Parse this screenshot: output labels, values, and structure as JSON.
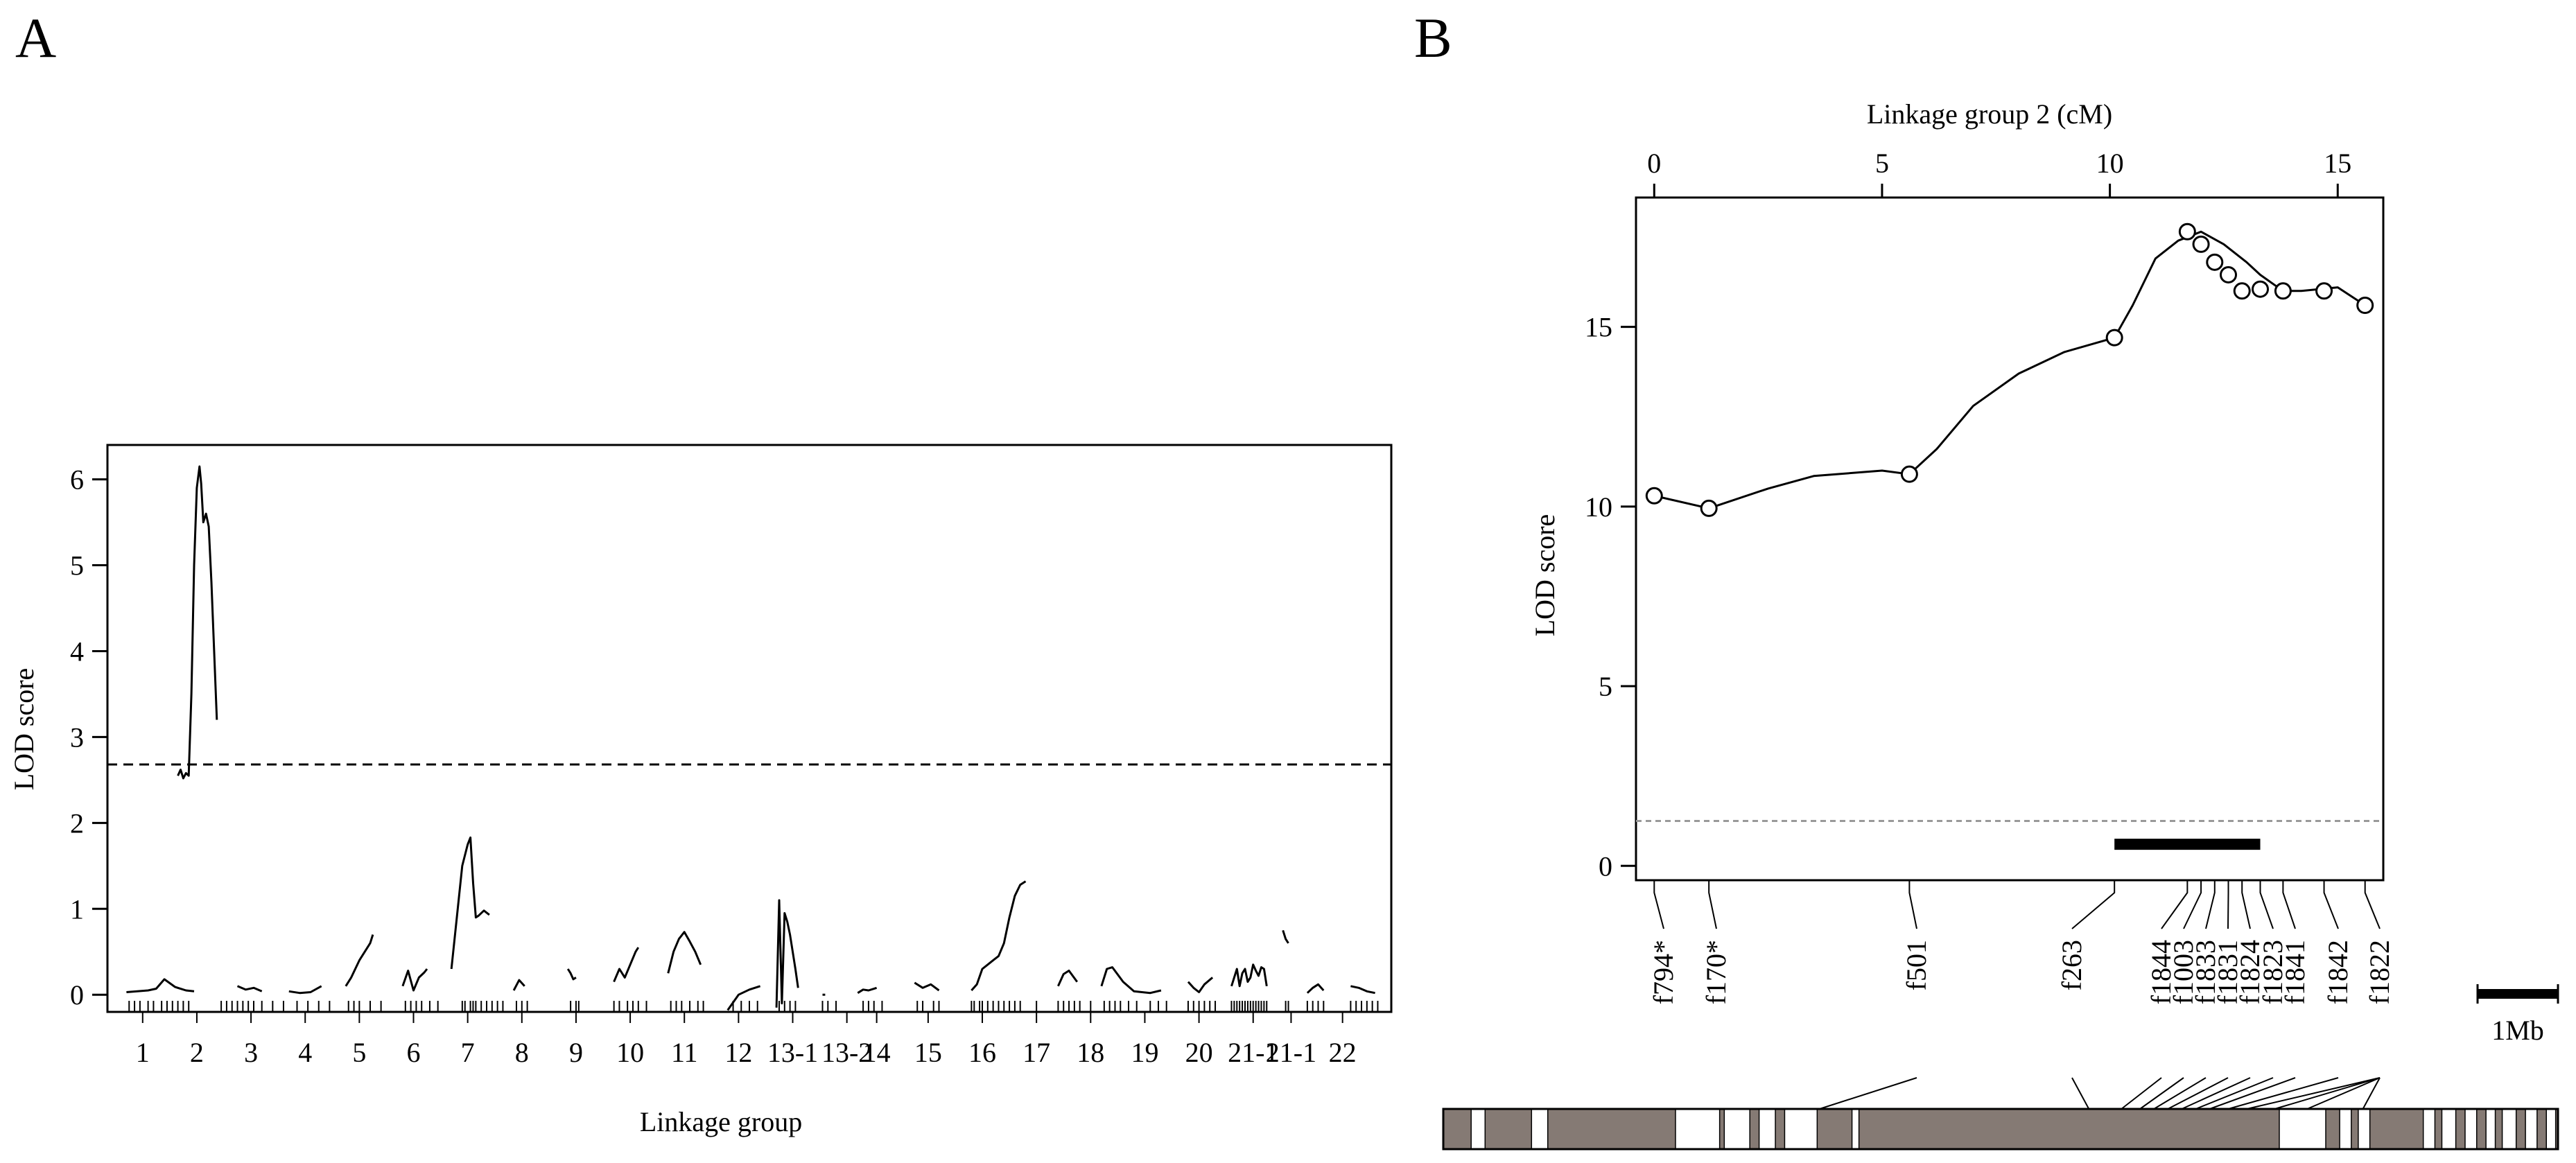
{
  "chart_data": [
    {
      "type": "line",
      "panel_label": "A",
      "xlabel": "Linkage group",
      "ylabel": "LOD score",
      "ylim": [
        -0.2,
        6.4
      ],
      "yticks": [
        0,
        1,
        2,
        3,
        4,
        5,
        6
      ],
      "threshold": 2.68,
      "groups": [
        "1",
        "2",
        "3",
        "4",
        "5",
        "6",
        "7",
        "8",
        "9",
        "10",
        "11",
        "12",
        "13-1",
        "13-2",
        "14",
        "15",
        "16",
        "17",
        "18",
        "19",
        "20",
        "21-1",
        "21-1",
        "22"
      ],
      "group_label_x": [
        1,
        2,
        3,
        4,
        5,
        6,
        7,
        8,
        9,
        10,
        11,
        12,
        13,
        14,
        14.55,
        15.5,
        16.5,
        17.5,
        18.5,
        19.5,
        20.5,
        21.5,
        22.2,
        23.15
      ],
      "xlim": [
        0.35,
        24.05
      ],
      "series": [
        {
          "x": [
            0.7,
            0.9,
            1.1,
            1.25,
            1.4,
            1.6,
            1.8,
            1.95
          ],
          "y": [
            0.03,
            0.04,
            0.05,
            0.07,
            0.18,
            0.09,
            0.05,
            0.04
          ]
        },
        {
          "x": [
            1.65,
            1.7,
            1.75,
            1.8,
            1.85,
            1.9,
            1.95,
            2.0,
            2.05,
            2.08,
            2.12,
            2.17,
            2.22,
            2.27,
            2.32,
            2.37
          ],
          "y": [
            2.55,
            2.62,
            2.52,
            2.58,
            2.55,
            3.5,
            5.0,
            5.9,
            6.15,
            5.95,
            5.5,
            5.6,
            5.45,
            4.8,
            4.0,
            3.2
          ]
        },
        {
          "x": [
            2.75,
            2.9,
            3.05,
            3.2
          ],
          "y": [
            0.1,
            0.06,
            0.08,
            0.04
          ]
        },
        {
          "x": [
            3.7,
            3.9,
            4.1,
            4.3
          ],
          "y": [
            0.04,
            0.02,
            0.03,
            0.1
          ]
        },
        {
          "x": [
            4.75,
            4.85,
            5.0,
            5.1,
            5.2,
            5.25
          ],
          "y": [
            0.1,
            0.2,
            0.4,
            0.5,
            0.6,
            0.7
          ]
        },
        {
          "x": [
            5.8,
            5.9,
            6.0,
            6.1,
            6.2,
            6.25
          ],
          "y": [
            0.1,
            0.28,
            0.05,
            0.2,
            0.26,
            0.3
          ]
        },
        {
          "x": [
            6.7,
            6.8,
            6.9,
            7.0,
            7.05,
            7.1,
            7.15,
            7.2,
            7.3,
            7.4
          ],
          "y": [
            0.3,
            0.9,
            1.5,
            1.75,
            1.83,
            1.3,
            0.9,
            0.92,
            0.98,
            0.93
          ]
        },
        {
          "x": [
            7.85,
            7.95,
            8.05
          ],
          "y": [
            0.05,
            0.17,
            0.1
          ]
        },
        {
          "x": [
            8.85,
            8.9,
            8.95,
            9.0
          ],
          "y": [
            0.3,
            0.25,
            0.18,
            0.2
          ]
        },
        {
          "x": [
            9.7,
            9.8,
            9.9,
            10.0,
            10.1,
            10.15
          ],
          "y": [
            0.15,
            0.3,
            0.2,
            0.35,
            0.5,
            0.55
          ]
        },
        {
          "x": [
            10.7,
            10.8,
            10.9,
            11.0,
            11.1,
            11.2,
            11.3
          ],
          "y": [
            0.25,
            0.5,
            0.65,
            0.73,
            0.62,
            0.5,
            0.35
          ]
        },
        {
          "x": [
            11.8,
            12.0,
            12.2,
            12.4
          ],
          "y": [
            -0.18,
            0.0,
            0.06,
            0.1
          ]
        },
        {
          "x": [
            12.7,
            12.75,
            12.8,
            12.85,
            12.9,
            12.95,
            13.0,
            13.05,
            13.1
          ],
          "y": [
            -0.15,
            1.1,
            -0.1,
            0.95,
            0.85,
            0.7,
            0.5,
            0.3,
            0.08
          ]
        },
        {
          "x": [
            13.55,
            13.6
          ],
          "y": [
            0.0,
            0.0
          ]
        },
        {
          "x": [
            14.2,
            14.3,
            14.4,
            14.55
          ],
          "y": [
            0.02,
            0.06,
            0.05,
            0.08
          ]
        },
        {
          "x": [
            15.25,
            15.4,
            15.55,
            15.7
          ],
          "y": [
            0.14,
            0.08,
            0.12,
            0.05
          ]
        },
        {
          "x": [
            16.3,
            16.4,
            16.5,
            16.6,
            16.7,
            16.8,
            16.9,
            17.0,
            17.1,
            17.2,
            17.3
          ],
          "y": [
            0.05,
            0.12,
            0.3,
            0.35,
            0.4,
            0.45,
            0.6,
            0.9,
            1.15,
            1.28,
            1.32
          ]
        },
        {
          "x": [
            17.9,
            18.0,
            18.1,
            18.25
          ],
          "y": [
            0.1,
            0.24,
            0.28,
            0.15
          ]
        },
        {
          "x": [
            18.7,
            18.8,
            18.9,
            19.1,
            19.3,
            19.6,
            19.8
          ],
          "y": [
            0.1,
            0.3,
            0.32,
            0.15,
            0.04,
            0.02,
            0.05
          ]
        },
        {
          "x": [
            20.3,
            20.4,
            20.5,
            20.6,
            20.75
          ],
          "y": [
            0.15,
            0.08,
            0.03,
            0.12,
            0.2
          ]
        },
        {
          "x": [
            21.1,
            21.2,
            21.25,
            21.3,
            21.35,
            21.4,
            21.45,
            21.5,
            21.55,
            21.6,
            21.65,
            21.7,
            21.75
          ],
          "y": [
            0.1,
            0.3,
            0.1,
            0.25,
            0.3,
            0.15,
            0.2,
            0.35,
            0.28,
            0.22,
            0.32,
            0.3,
            0.1
          ]
        },
        {
          "x": [
            22.05,
            22.1,
            22.15
          ],
          "y": [
            0.75,
            0.65,
            0.6
          ]
        },
        {
          "x": [
            22.5,
            22.6,
            22.7,
            22.8
          ],
          "y": [
            0.02,
            0.08,
            0.12,
            0.05
          ]
        },
        {
          "x": [
            23.3,
            23.45,
            23.6,
            23.75
          ],
          "y": [
            0.1,
            0.08,
            0.04,
            0.02
          ]
        }
      ],
      "marker_ticks": [
        0.75,
        0.85,
        0.95,
        1.1,
        1.2,
        1.35,
        1.45,
        1.55,
        1.65,
        1.75,
        1.85,
        2.45,
        2.55,
        2.65,
        2.75,
        2.85,
        2.95,
        3.05,
        3.2,
        3.4,
        3.6,
        3.85,
        4.05,
        4.25,
        4.45,
        4.8,
        4.9,
        5.0,
        5.2,
        5.4,
        5.85,
        5.95,
        6.05,
        6.15,
        6.3,
        6.45,
        6.9,
        6.95,
        7.05,
        7.1,
        7.15,
        7.25,
        7.35,
        7.45,
        7.55,
        7.65,
        7.9,
        8.0,
        8.1,
        8.9,
        9.0,
        9.05,
        9.7,
        9.8,
        9.95,
        10.05,
        10.15,
        10.3,
        10.75,
        10.85,
        10.95,
        11.1,
        11.25,
        11.35,
        11.9,
        12.05,
        12.2,
        12.35,
        12.75,
        12.85,
        12.95,
        13.05,
        13.55,
        13.65,
        13.8,
        14.3,
        14.4,
        14.5,
        14.65,
        15.3,
        15.4,
        15.6,
        15.7,
        16.3,
        16.35,
        16.45,
        16.5,
        16.6,
        16.7,
        16.8,
        16.9,
        17.0,
        17.1,
        17.2,
        17.5,
        17.9,
        18.0,
        18.1,
        18.2,
        18.3,
        18.5,
        18.75,
        18.85,
        18.95,
        19.05,
        19.2,
        19.35,
        19.6,
        19.75,
        19.9,
        20.3,
        20.4,
        20.5,
        20.6,
        20.7,
        20.8,
        21.1,
        21.15,
        21.2,
        21.25,
        21.3,
        21.35,
        21.4,
        21.45,
        21.5,
        21.55,
        21.6,
        21.65,
        21.7,
        21.75,
        22.1,
        22.15,
        22.5,
        22.6,
        22.7,
        22.8,
        23.3,
        23.4,
        23.5,
        23.6,
        23.7,
        23.8
      ]
    },
    {
      "type": "line",
      "panel_label": "B",
      "xlabel": "Linkage group 2 (cM)",
      "ylabel": "LOD score",
      "xlim": [
        -0.4,
        16.0
      ],
      "ylim": [
        -0.4,
        18.6
      ],
      "xticks": [
        0,
        5,
        10,
        15
      ],
      "yticks": [
        0,
        5,
        10,
        15
      ],
      "threshold": 1.25,
      "interval": [
        10.1,
        13.3
      ],
      "curve": {
        "x": [
          0.0,
          1.2,
          2.5,
          3.5,
          5.0,
          5.6,
          6.2,
          7.0,
          8.0,
          9.0,
          10.1,
          10.5,
          11.0,
          11.5,
          12.0,
          12.5,
          13.0,
          13.3,
          13.8,
          14.2,
          15.0,
          15.6
        ],
        "y": [
          10.3,
          9.95,
          10.5,
          10.85,
          11.0,
          10.9,
          11.6,
          12.8,
          13.7,
          14.3,
          14.7,
          15.6,
          16.9,
          17.4,
          17.65,
          17.3,
          16.8,
          16.45,
          16.0,
          16.0,
          16.1,
          15.6
        ]
      },
      "markers": [
        {
          "name": "f794*",
          "x": 0.0,
          "y": 10.3
        },
        {
          "name": "f170*",
          "x": 1.2,
          "y": 9.95
        },
        {
          "name": "f501",
          "x": 5.6,
          "y": 10.9
        },
        {
          "name": "f263",
          "x": 10.1,
          "y": 14.7
        },
        {
          "name": "f1844",
          "x": 11.7,
          "y": 17.65
        },
        {
          "name": "f1003",
          "x": 12.0,
          "y": 17.3
        },
        {
          "name": "f1833",
          "x": 12.3,
          "y": 16.8
        },
        {
          "name": "f1831",
          "x": 12.6,
          "y": 16.45
        },
        {
          "name": "f1824",
          "x": 12.9,
          "y": 16.0
        },
        {
          "name": "f1823",
          "x": 13.3,
          "y": 16.05
        },
        {
          "name": "f1841",
          "x": 13.8,
          "y": 16.0
        },
        {
          "name": "f1842",
          "x": 14.7,
          "y": 16.0
        },
        {
          "name": "f1822",
          "x": 15.6,
          "y": 15.6
        }
      ],
      "scale_bar_label": "1Mb",
      "physical_map": {
        "range": [
          0,
          24.0
        ],
        "blocks": [
          [
            0,
            0.6
          ],
          [
            0.9,
            1.9
          ],
          [
            2.25,
            5.0
          ],
          [
            5.95,
            6.05
          ],
          [
            6.6,
            6.8
          ],
          [
            7.15,
            7.35
          ],
          [
            8.05,
            8.8
          ],
          [
            8.95,
            18.0
          ],
          [
            19.0,
            19.3
          ],
          [
            19.55,
            19.7
          ],
          [
            19.95,
            21.1
          ],
          [
            21.35,
            21.5
          ],
          [
            21.8,
            22.0
          ],
          [
            22.25,
            22.45
          ],
          [
            22.65,
            22.8
          ],
          [
            23.1,
            23.3
          ],
          [
            23.55,
            23.75
          ],
          [
            23.95,
            24.0
          ]
        ],
        "marker_positions": [
          8.1,
          13.9,
          14.6,
          15.0,
          15.3,
          15.6,
          15.9,
          16.2,
          16.5,
          16.9,
          17.3,
          17.9,
          18.6,
          19.8
        ]
      }
    }
  ]
}
